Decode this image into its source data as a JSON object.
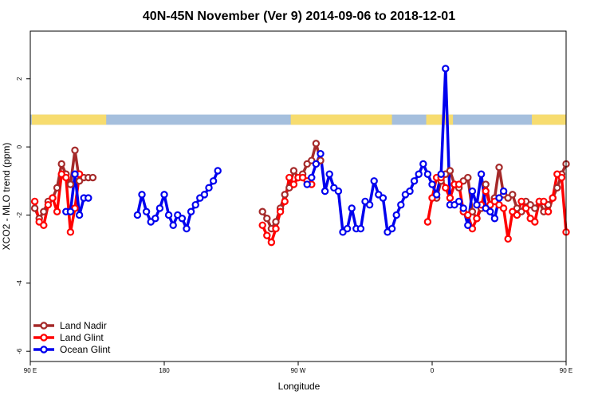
{
  "chart_data": {
    "type": "line",
    "title": "40N-45N November (Ver 9)   2014-09-06 to 2018-12-01",
    "xlabel": "Longitude",
    "ylabel": "XCO2 - MLO trend (ppm)",
    "xlim": [
      90,
      450
    ],
    "ylim": [
      -6.3,
      3.4
    ],
    "x_ticks": [
      {
        "value": 90,
        "label": "90 E"
      },
      {
        "value": 180,
        "label": "180"
      },
      {
        "value": 270,
        "label": "90 W"
      },
      {
        "value": 360,
        "label": "0"
      },
      {
        "value": 450,
        "label": "90 E"
      },
      {
        "value": 540,
        "label": "180"
      }
    ],
    "y_ticks": [
      {
        "value": 2,
        "label": "2"
      },
      {
        "value": 0,
        "label": "0"
      },
      {
        "value": -2,
        "label": "-2"
      },
      {
        "value": -4,
        "label": "-4"
      },
      {
        "value": -6,
        "label": "-6"
      }
    ],
    "grid": false,
    "legend_position": "bottom-left",
    "land_ocean_strip": {
      "y_range": [
        0.65,
        0.95
      ],
      "ocean_color": "#a5bfdd",
      "land_color": "#f7dc6f",
      "land_segments": [
        [
          91,
          141
        ],
        [
          265,
          333
        ],
        [
          356,
          374
        ],
        [
          427,
          482
        ],
        [
          625,
          630
        ],
        [
          1040,
          1080
        ]
      ]
    },
    "series": [
      {
        "name": "Land Nadir",
        "color": "#a52a2a",
        "segments": [
          {
            "x": [
              93,
              96,
              99,
              102,
              105,
              108,
              111,
              114,
              117,
              120,
              123,
              126,
              129,
              132
            ],
            "y": [
              -1.8,
              -2.1,
              -1.9,
              -1.6,
              -1.5,
              -1.2,
              -0.5,
              -0.8,
              -1.1,
              -0.1,
              -1.0,
              -0.9,
              -0.9,
              -0.9
            ]
          },
          {
            "x": [
              246,
              249,
              252,
              255,
              258,
              261,
              264,
              267,
              270,
              273,
              276,
              279,
              282,
              285
            ],
            "y": [
              -1.9,
              -2.1,
              -2.4,
              -2.2,
              -1.8,
              -1.4,
              -1.2,
              -0.7,
              -0.9,
              -0.8,
              -0.5,
              -0.4,
              0.1,
              -0.4
            ]
          },
          {
            "x": [
              363,
              366,
              369,
              372,
              375,
              378,
              381,
              384,
              387,
              390,
              393,
              396,
              399,
              402,
              405,
              408,
              411,
              414,
              417,
              420,
              423,
              426,
              429,
              432,
              435,
              438,
              441,
              444,
              447,
              450
            ],
            "y": [
              -1.5,
              -1.0,
              -0.8,
              -0.7,
              -1.1,
              -1.2,
              -1.0,
              -0.9,
              -1.9,
              -2.1,
              -1.8,
              -1.1,
              -1.7,
              -1.5,
              -0.6,
              -1.4,
              -1.5,
              -1.4,
              -1.8,
              -1.9,
              -1.6,
              -1.7,
              -1.8,
              -1.6,
              -1.9,
              -1.7,
              -1.5,
              -1.2,
              -0.8,
              -0.5
            ]
          },
          {
            "x": [
              453,
              456,
              459,
              462
            ],
            "y": [
              -1.0,
              -1.1,
              -0.1,
              -0.9
            ]
          }
        ]
      },
      {
        "name": "Land Glint",
        "color": "#ff0000",
        "segments": [
          {
            "x": [
              93,
              96,
              99,
              102,
              105,
              108,
              111,
              114,
              117,
              120,
              123
            ],
            "y": [
              -1.6,
              -2.2,
              -2.3,
              -1.7,
              -1.5,
              -1.9,
              -0.8,
              -0.9,
              -2.5,
              -1.8,
              -0.8
            ]
          },
          {
            "x": [
              246,
              249,
              252,
              255,
              258,
              261,
              264,
              267,
              270,
              273,
              276,
              279
            ],
            "y": [
              -2.3,
              -2.6,
              -2.8,
              -2.4,
              -1.9,
              -1.6,
              -0.9,
              -1.1,
              -0.9,
              -0.9,
              -1.0,
              -1.1
            ]
          },
          {
            "x": [
              357,
              360,
              363,
              366,
              369,
              372,
              375,
              378,
              381,
              384,
              387,
              390,
              393,
              396,
              399,
              402,
              405,
              408,
              411,
              414,
              417,
              420,
              423,
              426,
              429,
              432,
              435,
              438,
              441,
              444,
              447,
              450,
              453,
              456,
              459,
              462
            ],
            "y": [
              -2.2,
              -1.5,
              -0.9,
              -0.9,
              -1.2,
              -1.5,
              -1.1,
              -1.1,
              -1.9,
              -2.0,
              -2.4,
              -2.1,
              -1.7,
              -1.3,
              -1.7,
              -1.6,
              -1.7,
              -1.8,
              -2.7,
              -1.9,
              -2.0,
              -1.6,
              -1.8,
              -2.1,
              -2.2,
              -1.6,
              -1.6,
              -1.9,
              -1.5,
              -0.8,
              -0.9,
              -2.5,
              -1.8,
              -0.8,
              -0.9,
              -1.0
            ]
          }
        ]
      },
      {
        "name": "Ocean Glint",
        "color": "#0000ee",
        "segments": [
          {
            "x": [
              114,
              117,
              120,
              123,
              126,
              129
            ],
            "y": [
              -1.9,
              -1.9,
              -0.8,
              -2.0,
              -1.5,
              -1.5
            ]
          },
          {
            "x": [
              162,
              165,
              168,
              171,
              174,
              177,
              180,
              183,
              186,
              189,
              192,
              195,
              198,
              201,
              204,
              207,
              210,
              213,
              216
            ],
            "y": [
              -2.0,
              -1.4,
              -1.9,
              -2.2,
              -2.1,
              -1.8,
              -1.4,
              -2.0,
              -2.3,
              -2.0,
              -2.1,
              -2.4,
              -1.9,
              -1.7,
              -1.5,
              -1.4,
              -1.2,
              -1.0,
              -0.7
            ]
          },
          {
            "x": [
              276,
              279,
              282,
              285,
              288,
              291,
              294,
              297,
              300,
              303,
              306,
              309,
              312,
              315,
              318,
              321,
              324,
              327,
              330,
              333,
              336,
              339,
              342,
              345,
              348,
              351,
              354,
              357,
              360,
              363,
              366,
              369,
              372,
              375,
              378,
              381,
              384,
              387,
              390,
              393,
              396,
              399,
              402,
              405,
              408
            ],
            "y": [
              -1.1,
              -0.9,
              -0.5,
              -0.2,
              -1.3,
              -0.8,
              -1.2,
              -1.3,
              -2.5,
              -2.4,
              -1.8,
              -2.4,
              -2.4,
              -1.6,
              -1.7,
              -1.0,
              -1.4,
              -1.5,
              -2.5,
              -2.4,
              -2.0,
              -1.7,
              -1.4,
              -1.3,
              -1.0,
              -0.8,
              -0.5,
              -0.8,
              -1.1,
              -1.4,
              -0.8,
              2.3,
              -1.7,
              -1.7,
              -1.6,
              -1.8,
              -2.3,
              -1.3,
              -1.7,
              -0.8,
              -1.8,
              -1.9,
              -2.1,
              -1.5,
              -1.3
            ]
          },
          {
            "x": [
              453,
              456,
              459,
              462,
              465,
              468
            ],
            "y": [
              -1.9,
              -1.9,
              -0.8,
              -2.0,
              -1.5,
              -1.5
            ]
          }
        ]
      }
    ]
  }
}
